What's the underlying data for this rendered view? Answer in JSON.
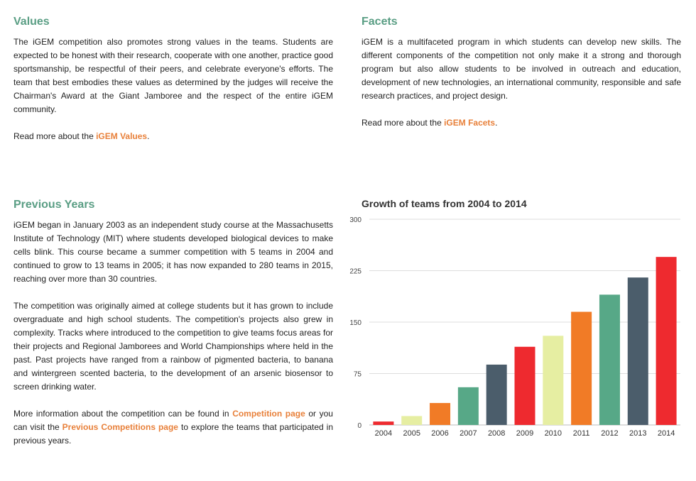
{
  "values": {
    "heading": "Values",
    "body": "The iGEM competition also promotes strong values in the teams. Students are expected to be honest with their research, cooperate with one another, practice good sportsmanship, be respectful of their peers, and celebrate everyone's efforts. The team that best embodies these values as determined by the judges will receive the Chairman's Award at the Giant Jamboree and the respect of the entire iGEM community.",
    "read_more_prefix": "Read more about the ",
    "read_more_link": "iGEM Values",
    "read_more_suffix": "."
  },
  "facets": {
    "heading": "Facets",
    "body": "iGEM is a multifaceted program in which students can develop new skills. The different components of the competition not only make it a strong and thorough program but also allow students to be involved in outreach and education, development of new technologies, an international community, responsible and safe research practices, and project design.",
    "read_more_prefix": "Read more about the ",
    "read_more_link": "iGEM Facets",
    "read_more_suffix": "."
  },
  "previous_years": {
    "heading": "Previous Years",
    "para1": "iGEM began in January 2003 as an independent study course at the Massachusetts Institute of Technology (MIT) where students developed biological devices to make cells blink. This course became a summer competition with 5 teams in 2004 and continued to grow to 13 teams in 2005; it has now expanded to 280 teams in 2015, reaching over more than 30 countries.",
    "para2": "The competition was originally aimed at college students but it has grown to include overgraduate and high school students. The competition's projects also grew in complexity. Tracks where introduced to the competition to give teams focus areas for their projects and Regional Jamborees and World Championships where held in the past. Past projects have ranged from a rainbow of pigmented bacteria, to banana and wintergreen scented bacteria, to the development of an arsenic biosensor to screen drinking water.",
    "para3_prefix": "More information about the competition can be found in ",
    "competition_link": "Competition page",
    "para3_middle": " or you can visit the ",
    "previous_link": "Previous Competitions page",
    "para3_suffix": " to explore the teams that participated in previous years."
  },
  "chart_data": {
    "type": "bar",
    "title": "Growth of teams from 2004 to 2014",
    "xlabel": "",
    "ylabel": "",
    "categories": [
      "2004",
      "2005",
      "2006",
      "2007",
      "2008",
      "2009",
      "2010",
      "2011",
      "2012",
      "2013",
      "2014"
    ],
    "values": [
      5,
      13,
      32,
      55,
      88,
      114,
      130,
      165,
      190,
      215,
      245
    ],
    "colors": [
      "#ee2a2f",
      "#e6eea2",
      "#f17b26",
      "#57a887",
      "#4b5d6b",
      "#ee2a2f",
      "#e6eea2",
      "#f17b26",
      "#57a887",
      "#4b5d6b",
      "#ee2a2f"
    ],
    "ylim": [
      0,
      300
    ],
    "yticks": [
      0,
      75,
      150,
      225,
      300
    ],
    "grid": true,
    "legend": "none"
  }
}
